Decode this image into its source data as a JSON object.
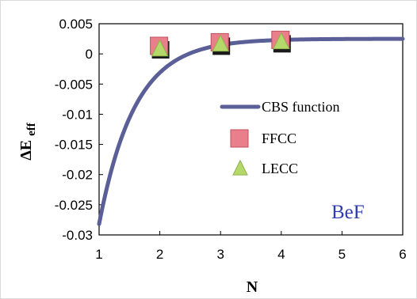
{
  "chart_data": {
    "type": "scatter",
    "annotation": "BeF",
    "xlabel": "N",
    "ylabel_main": "ΔE",
    "ylabel_sub": "eff",
    "xlim": [
      1,
      6
    ],
    "ylim": [
      -0.03,
      0.005
    ],
    "x_ticks": [
      1,
      2,
      3,
      4,
      5,
      6
    ],
    "x_tick_labels": [
      "1",
      "2",
      "3",
      "4",
      "5",
      "6"
    ],
    "y_ticks": [
      0.005,
      0,
      -0.005,
      -0.01,
      -0.015,
      -0.02,
      -0.025,
      -0.03
    ],
    "y_tick_labels": [
      "0.005",
      "0",
      "-0.005",
      "-0.01",
      "-0.015",
      "-0.02",
      "-0.025",
      "-0.03"
    ],
    "grid": false,
    "legend_position": "right",
    "series": [
      {
        "name": "CBS function",
        "kind": "line",
        "color": "#5b5f97",
        "curve": {
          "asymptote": 0.0025,
          "amplitude": 0.0307,
          "rate": 1.7
        }
      },
      {
        "name": "FFCC",
        "kind": "marker-square",
        "color": "#e87f8a",
        "x": [
          2,
          3,
          4
        ],
        "y": [
          0.0012,
          0.0018,
          0.0022
        ]
      },
      {
        "name": "LECC",
        "kind": "marker-triangle",
        "color": "#b5d86a",
        "x": [
          2,
          3,
          4
        ],
        "y": [
          0.0011,
          0.0019,
          0.0023
        ]
      }
    ],
    "colors": {
      "axis": "#000000",
      "annotation": "#2f3bb0",
      "shadow": "#1a1a1a"
    }
  }
}
